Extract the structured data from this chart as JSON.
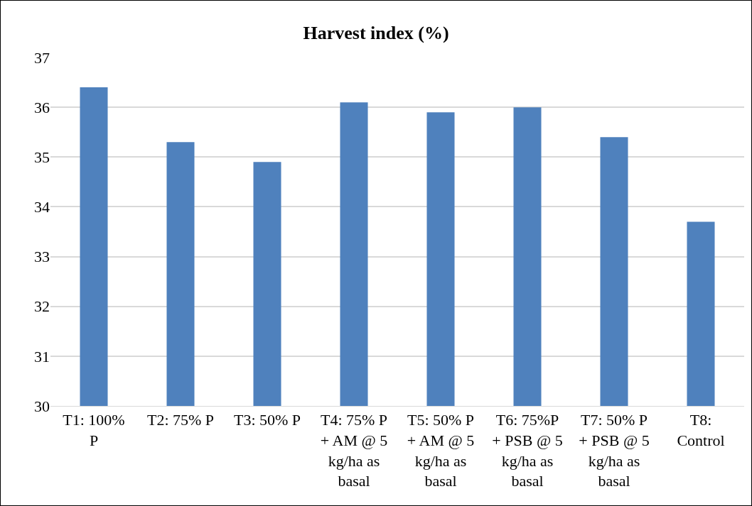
{
  "chart_data": {
    "type": "bar",
    "title": "Harvest index (%)",
    "categories": [
      "T1: 100% P",
      "T2: 75% P",
      "T3: 50% P",
      "T4: 75% P + AM @ 5 kg/ha as basal",
      "T5: 50% P + AM @ 5 kg/ha as basal",
      "T6: 75%P + PSB @ 5 kg/ha as basal",
      "T7: 50% P + PSB @ 5 kg/ha as basal",
      "T8: Control"
    ],
    "values": [
      36.4,
      35.3,
      34.9,
      36.1,
      35.9,
      36.0,
      35.4,
      33.7
    ],
    "color": "#4f81bd",
    "ylim": [
      30,
      37
    ],
    "yticks": [
      30,
      31,
      32,
      33,
      34,
      35,
      36,
      37
    ],
    "grid": "y"
  }
}
